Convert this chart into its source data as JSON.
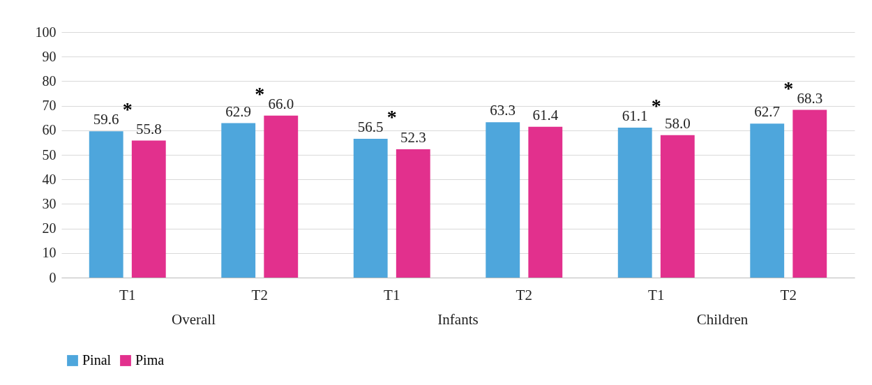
{
  "chart_data": {
    "type": "bar",
    "categories": [
      "T1",
      "T2",
      "T1",
      "T2",
      "T1",
      "T2"
    ],
    "series": [
      {
        "name": "Pinal",
        "color": "#4ea6dc",
        "values": [
          59.6,
          62.9,
          56.5,
          63.3,
          61.1,
          62.7
        ],
        "value_labels": [
          "59.6",
          "62.9",
          "56.5",
          "63.3",
          "61.1",
          "62.7"
        ]
      },
      {
        "name": "Pima",
        "color": "#e2308d",
        "values": [
          55.8,
          66.0,
          52.3,
          61.4,
          58.0,
          68.3
        ],
        "value_labels": [
          "55.8",
          "66.0",
          "52.3",
          "61.4",
          "58.0",
          "68.3"
        ]
      }
    ],
    "ylim": [
      0,
      100
    ],
    "yticks": [
      0,
      10,
      20,
      30,
      40,
      50,
      60,
      70,
      80,
      90,
      100
    ],
    "grid": "y",
    "legend": "bottom",
    "annotations": [
      "Overall",
      "Infants",
      "Children",
      "*",
      "*",
      "*",
      "*",
      "*"
    ]
  }
}
